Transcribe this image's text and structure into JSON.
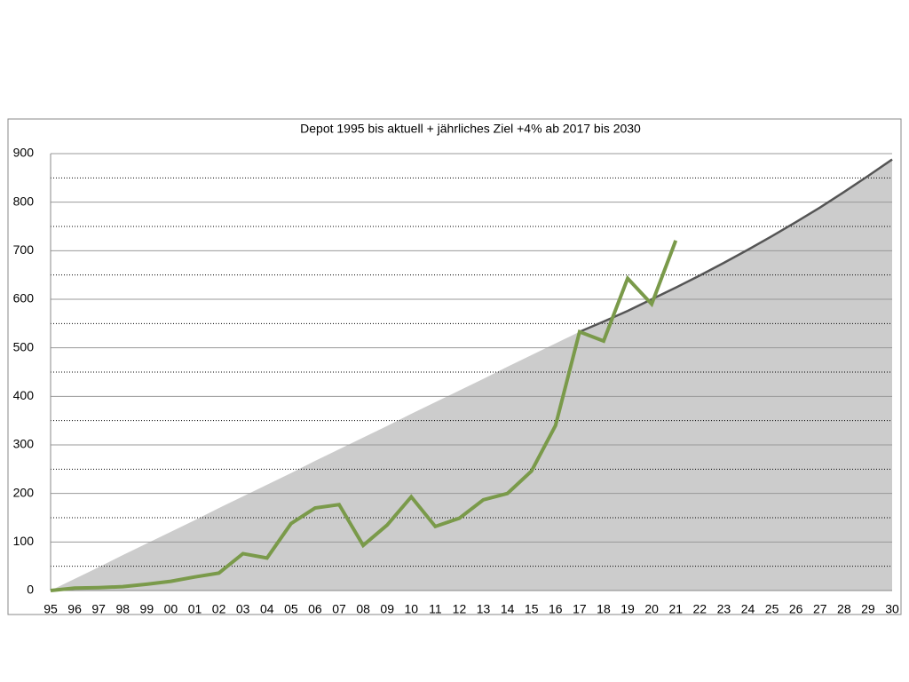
{
  "chart_data": {
    "type": "line",
    "title": "Depot 1995 bis aktuell + jährliches Ziel +4% ab 2017 bis 2030",
    "categories": [
      "95",
      "96",
      "97",
      "98",
      "99",
      "00",
      "01",
      "02",
      "03",
      "04",
      "05",
      "06",
      "07",
      "08",
      "09",
      "10",
      "11",
      "12",
      "13",
      "14",
      "15",
      "16",
      "17",
      "18",
      "19",
      "20",
      "21",
      "22",
      "23",
      "24",
      "25",
      "26",
      "27",
      "28",
      "29",
      "30"
    ],
    "series": [
      {
        "style": "area",
        "color": "#cccccc",
        "values": [
          0,
          24,
          48,
          73,
          97,
          121,
          145,
          170,
          194,
          218,
          242,
          267,
          291,
          315,
          339,
          364,
          388,
          412,
          436,
          461,
          485,
          509,
          533,
          554,
          576,
          600,
          624,
          649,
          675,
          702,
          730,
          759,
          789,
          821,
          854,
          888
        ]
      },
      {
        "style": "line",
        "color": "#555555",
        "values": [
          null,
          null,
          null,
          null,
          null,
          null,
          null,
          null,
          null,
          null,
          null,
          null,
          null,
          null,
          null,
          null,
          null,
          null,
          null,
          null,
          null,
          null,
          533,
          554,
          576,
          600,
          624,
          649,
          675,
          702,
          730,
          759,
          789,
          821,
          854,
          888
        ]
      },
      {
        "style": "line",
        "color": "#7a9a4a",
        "values": [
          0,
          5,
          6,
          8,
          13,
          19,
          28,
          36,
          76,
          67,
          138,
          170,
          177,
          93,
          135,
          193,
          132,
          149,
          187,
          200,
          246,
          340,
          533,
          514,
          643,
          590,
          721,
          null,
          null,
          null,
          null,
          null,
          null,
          null,
          null,
          null
        ]
      }
    ],
    "ylim": [
      0,
      900
    ],
    "yticks": [
      0,
      100,
      200,
      300,
      400,
      500,
      600,
      700,
      800,
      900
    ],
    "yminorticks": [
      50,
      150,
      250,
      350,
      450,
      550,
      650,
      750,
      850
    ],
    "grid": true
  }
}
